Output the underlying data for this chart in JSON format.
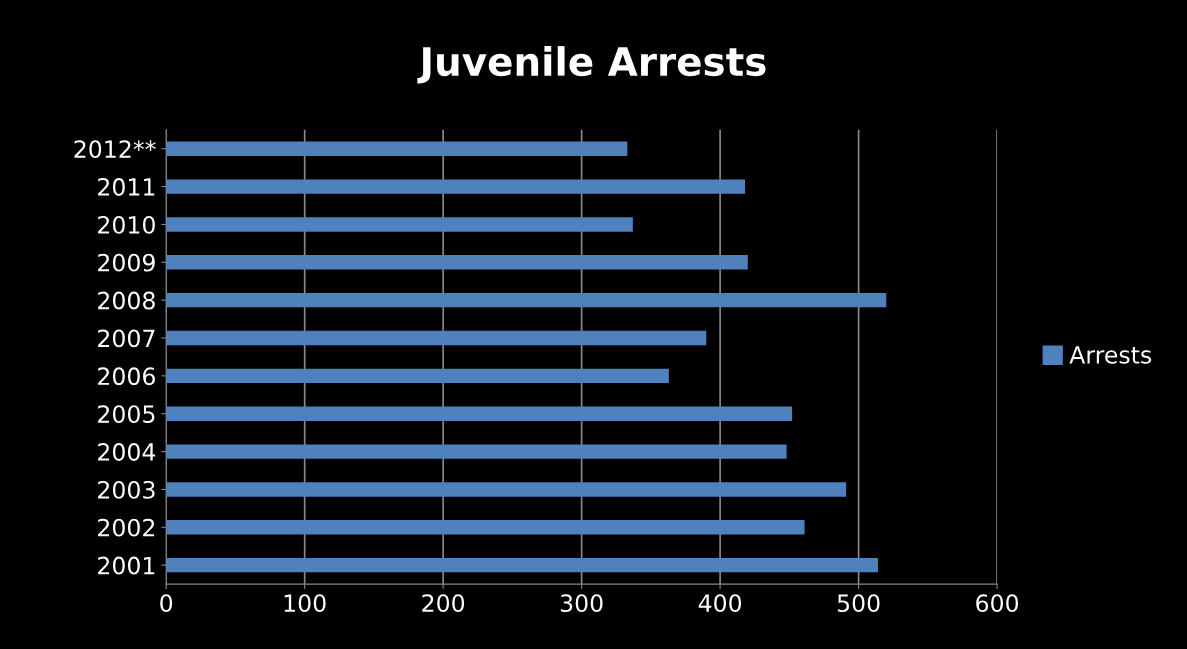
{
  "chart_data": {
    "type": "bar",
    "orientation": "horizontal",
    "title": "Juvenile Arrests",
    "categories": [
      "2012**",
      "2011",
      "2010",
      "2009",
      "2008",
      "2007",
      "2006",
      "2005",
      "2004",
      "2003",
      "2002",
      "2001"
    ],
    "series": [
      {
        "name": "Arrests",
        "color": "#4f81bd",
        "values": [
          333,
          418,
          337,
          420,
          520,
          390,
          363,
          452,
          448,
          491,
          461,
          514
        ]
      }
    ],
    "xlim": [
      0,
      600
    ],
    "xticks": [
      0,
      100,
      200,
      300,
      400,
      500,
      600
    ],
    "grid": "x",
    "legend": "right"
  }
}
